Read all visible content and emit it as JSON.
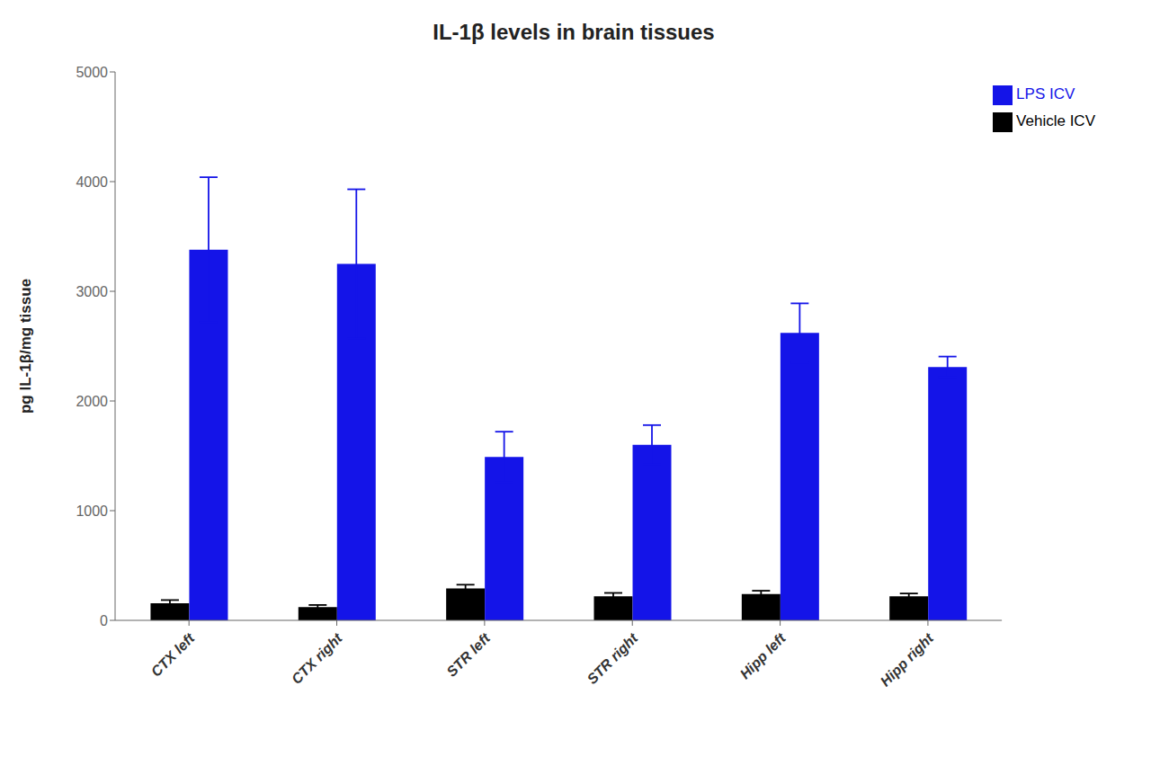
{
  "chart_data": {
    "type": "bar",
    "title": "IL-1β levels in brain tissues",
    "ylabel": "pg IL-1β/mg tissue",
    "categories": [
      "CTX left",
      "CTX right",
      "STR left",
      "STR right",
      "Hipp left",
      "Hipp right"
    ],
    "series": [
      {
        "name": "Vehicle ICV",
        "color": "#000000",
        "values": [
          155,
          120,
          290,
          220,
          240,
          220
        ],
        "errors": [
          30,
          20,
          35,
          30,
          30,
          25
        ]
      },
      {
        "name": "LPS ICV",
        "color": "#1414e8",
        "values": [
          3380,
          3250,
          1490,
          1600,
          2620,
          2310
        ],
        "errors": [
          660,
          680,
          230,
          180,
          270,
          95
        ]
      }
    ],
    "ylim": [
      0,
      5000
    ],
    "yticks": [
      0,
      1000,
      2000,
      3000,
      4000,
      5000
    ],
    "legend": "upper right",
    "grid": false
  }
}
